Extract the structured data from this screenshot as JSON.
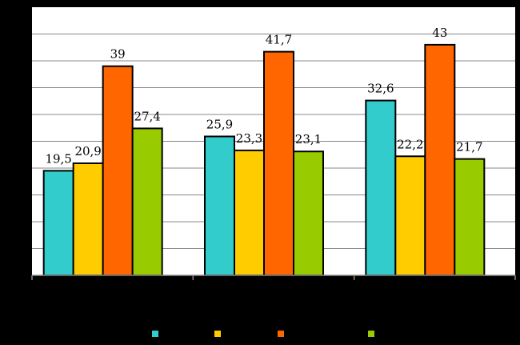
{
  "chart_data": {
    "type": "bar",
    "categories": [
      "",
      "",
      ""
    ],
    "series": [
      {
        "color": "#33CCCC",
        "values": [
          19.5,
          25.9,
          32.6
        ]
      },
      {
        "color": "#FFCC00",
        "values": [
          20.9,
          23.3,
          22.2
        ]
      },
      {
        "color": "#FF6600",
        "values": [
          39,
          41.7,
          43
        ]
      },
      {
        "color": "#99CC00",
        "values": [
          27.4,
          23.1,
          21.7
        ]
      }
    ],
    "data_labels": [
      [
        "19,5",
        "25,9",
        "32,6"
      ],
      [
        "20,9",
        "23,3",
        "22,2"
      ],
      [
        "39",
        "41,7",
        "43"
      ],
      [
        "27,4",
        "23,1",
        "21,7"
      ]
    ],
    "ylim": [
      0,
      50
    ],
    "grid": true,
    "legend": "bottom",
    "title": "",
    "xlabel": "",
    "ylabel": "",
    "colors": {
      "plot_background": "#FFFFFF",
      "background": "#000000",
      "gridline": "#888888"
    }
  }
}
